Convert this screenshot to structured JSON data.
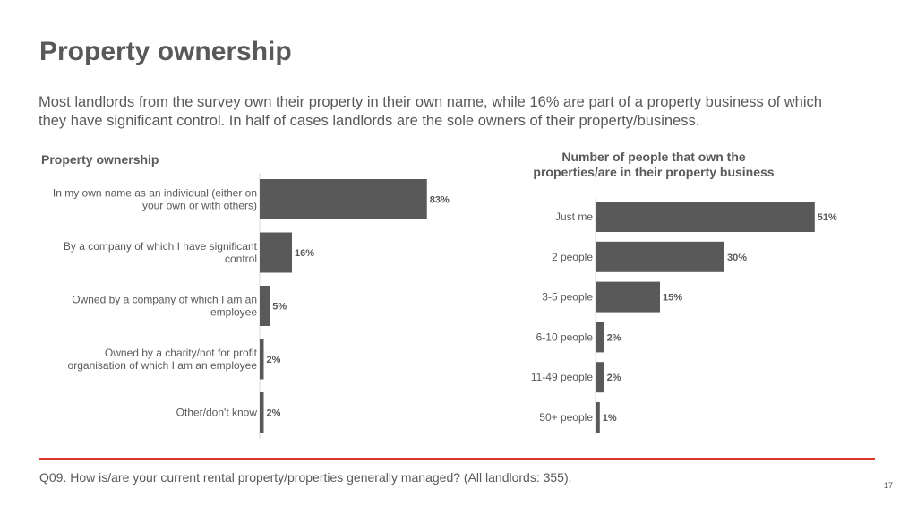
{
  "slide": {
    "title": "Property ownership",
    "subtitle": "Most landlords from the survey own their property in their own name, while 16% are part of a property business of which they have significant control. In half of cases landlords are the sole owners of their property/business.",
    "footnote": "Q09. How is/are your current rental property/properties generally managed? (All landlords: 355).",
    "page_number": "17"
  },
  "colors": {
    "bar": "#595959",
    "text": "#595959",
    "accent_rule": "#d9392b",
    "axis": "#d9d9d9"
  },
  "chart_data": [
    {
      "type": "bar",
      "orientation": "horizontal",
      "title": "Property ownership",
      "categories": [
        [
          "In my own name as an individual (either on",
          "your own or with others)"
        ],
        [
          "By a company of which I have significant",
          "control"
        ],
        [
          "Owned by a company of which I am an",
          "employee"
        ],
        [
          "Owned by a charity/not for profit",
          "organisation of which I am an employee"
        ],
        [
          "Other/don't know"
        ]
      ],
      "values": [
        83,
        16,
        5,
        2,
        2
      ],
      "value_labels": [
        "83%",
        "16%",
        "5%",
        "2%",
        "2%"
      ],
      "unit": "%",
      "xlim": [
        0,
        100
      ],
      "grid": false,
      "legend": "none"
    },
    {
      "type": "bar",
      "orientation": "horizontal",
      "title_lines": [
        "Number of people that own the",
        "properties/are in their property business"
      ],
      "categories": [
        [
          "Just me"
        ],
        [
          "2 people"
        ],
        [
          "3-5 people"
        ],
        [
          "6-10 people"
        ],
        [
          "11-49 people"
        ],
        [
          "50+ people"
        ]
      ],
      "values": [
        51,
        30,
        15,
        2,
        2,
        1
      ],
      "value_labels": [
        "51%",
        "30%",
        "15%",
        "2%",
        "2%",
        "1%"
      ],
      "unit": "%",
      "xlim": [
        0,
        100
      ],
      "grid": false,
      "legend": "none"
    }
  ]
}
